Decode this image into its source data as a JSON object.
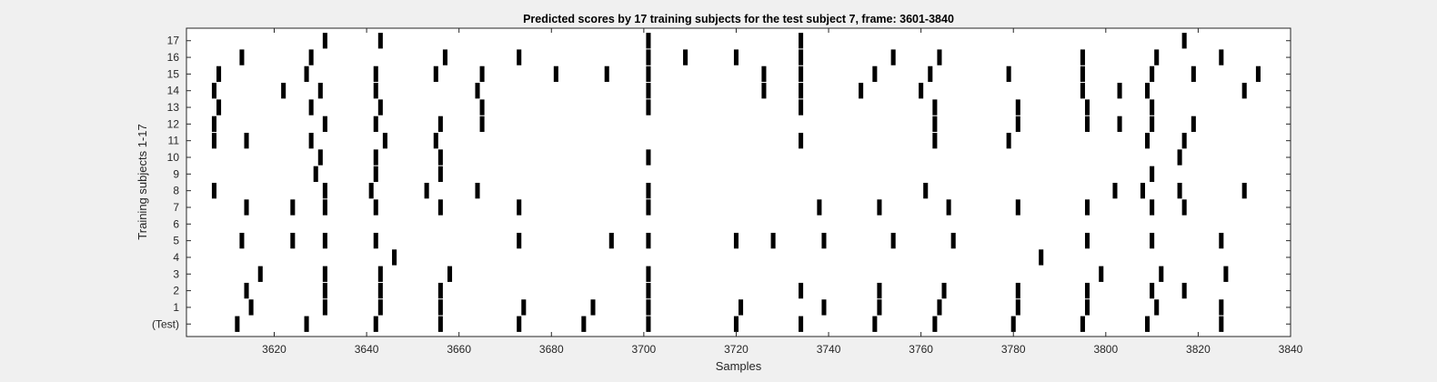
{
  "chart_data": {
    "type": "raster",
    "title": "Predicted scores by 17 training subjects for the test subject 7, frame: 3601-3840",
    "xlabel": "Samples",
    "ylabel": "Training subjects 1-17",
    "xlim": [
      3601,
      3840
    ],
    "xticks": [
      3620,
      3640,
      3660,
      3680,
      3700,
      3720,
      3740,
      3760,
      3780,
      3800,
      3820,
      3840
    ],
    "grid": false,
    "background": "#ffffff",
    "figure_background": "#f0f0f0",
    "mark_color": "#000000",
    "rows": [
      {
        "label": "(Test)",
        "x": [
          3612,
          3627,
          3642,
          3656,
          3673,
          3687,
          3701,
          3720,
          3734,
          3750,
          3763,
          3780,
          3795,
          3809,
          3825
        ]
      },
      {
        "label": "1",
        "x": [
          3615,
          3631,
          3643,
          3656,
          3674,
          3689,
          3701,
          3721,
          3739,
          3751,
          3764,
          3781,
          3796,
          3811,
          3825
        ]
      },
      {
        "label": "2",
        "x": [
          3614,
          3631,
          3643,
          3656,
          3701,
          3734,
          3751,
          3765,
          3781,
          3796,
          3810,
          3817
        ]
      },
      {
        "label": "3",
        "x": [
          3617,
          3631,
          3643,
          3658,
          3701,
          3799,
          3812,
          3826
        ]
      },
      {
        "label": "4",
        "x": [
          3646,
          3786
        ]
      },
      {
        "label": "5",
        "x": [
          3613,
          3624,
          3631,
          3642,
          3673,
          3693,
          3701,
          3720,
          3728,
          3739,
          3754,
          3767,
          3796,
          3810,
          3825
        ]
      },
      {
        "label": "6",
        "x": []
      },
      {
        "label": "7",
        "x": [
          3614,
          3624,
          3631,
          3642,
          3656,
          3673,
          3701,
          3738,
          3751,
          3766,
          3781,
          3796,
          3810,
          3817
        ]
      },
      {
        "label": "8",
        "x": [
          3607,
          3631,
          3641,
          3653,
          3664,
          3701,
          3761,
          3802,
          3808,
          3816,
          3830
        ]
      },
      {
        "label": "9",
        "x": [
          3629,
          3642,
          3656,
          3810
        ]
      },
      {
        "label": "10",
        "x": [
          3630,
          3642,
          3656,
          3701,
          3816
        ]
      },
      {
        "label": "11",
        "x": [
          3607,
          3614,
          3628,
          3644,
          3655,
          3734,
          3763,
          3779,
          3809,
          3817
        ]
      },
      {
        "label": "12",
        "x": [
          3607,
          3631,
          3642,
          3656,
          3665,
          3763,
          3781,
          3796,
          3803,
          3810,
          3819
        ]
      },
      {
        "label": "13",
        "x": [
          3608,
          3628,
          3643,
          3665,
          3701,
          3734,
          3763,
          3781,
          3796,
          3810
        ]
      },
      {
        "label": "14",
        "x": [
          3607,
          3622,
          3630,
          3642,
          3664,
          3701,
          3726,
          3734,
          3747,
          3760,
          3795,
          3803,
          3809,
          3830
        ]
      },
      {
        "label": "15",
        "x": [
          3608,
          3627,
          3642,
          3655,
          3665,
          3681,
          3692,
          3701,
          3726,
          3734,
          3750,
          3762,
          3779,
          3795,
          3810,
          3819,
          3833
        ]
      },
      {
        "label": "16",
        "x": [
          3613,
          3628,
          3657,
          3673,
          3701,
          3709,
          3720,
          3734,
          3754,
          3764,
          3795,
          3811,
          3825
        ]
      },
      {
        "label": "17",
        "x": [
          3631,
          3643,
          3701,
          3734,
          3817
        ]
      }
    ]
  }
}
